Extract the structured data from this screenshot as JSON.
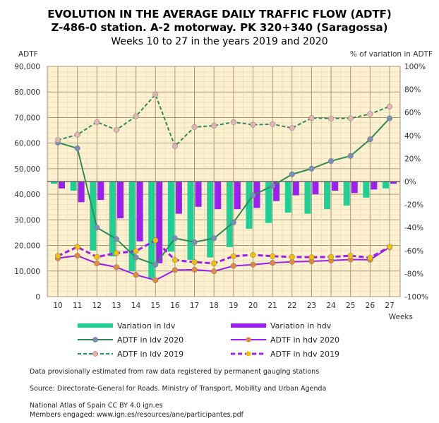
{
  "title": {
    "line1": "EVOLUTION IN THE AVERAGE DAILY TRAFFIC FLOW (ADTF)",
    "line2": "Z-486-0 station. A-2 motorway. PK 320+340 (Saragossa)",
    "line3": "Weeks 10 to 27 in the years 2019 and 2020"
  },
  "chart_data": {
    "type": "bar+line",
    "ylabel_left": "ADTF",
    "ylabel_right": "% of variation in ADTF",
    "xlabel": "Weeks",
    "ylim_left": [
      0,
      90000
    ],
    "ylim_right": [
      -100,
      100
    ],
    "yticks_left": [
      "0",
      "10,000",
      "20,000",
      "30,000",
      "40,000",
      "50,000",
      "60,000",
      "70,000",
      "80,000",
      "90,000"
    ],
    "yticks_right": [
      "-100%",
      "-80%",
      "-60%",
      "-40%",
      "-20%",
      "0%",
      "20%",
      "40%",
      "60%",
      "80%",
      "100%"
    ],
    "grid": true,
    "legend_position": "bottom",
    "categories": [
      "10",
      "11",
      "12",
      "13",
      "14",
      "15",
      "16",
      "17",
      "18",
      "19",
      "20",
      "21",
      "22",
      "23",
      "24",
      "25",
      "26",
      "27"
    ],
    "bar_series": [
      {
        "name": "Variation in ldv",
        "color": "#1fcf94",
        "axis": "right",
        "values": [
          -2,
          -8,
          -60,
          -65,
          -78,
          -84,
          -61,
          -68,
          -66,
          -57,
          -41,
          -36,
          -27,
          -28,
          -24,
          -21,
          -14,
          -6
        ]
      },
      {
        "name": "Variation in hdv",
        "color": "#9b1ff0",
        "axis": "right",
        "values": [
          -6,
          -18,
          -16,
          -32,
          -52,
          -71,
          -28,
          -22,
          -24,
          -24,
          -23,
          -17,
          -12,
          -11,
          -8,
          -10,
          -7,
          -2
        ]
      }
    ],
    "line_series": [
      {
        "name": "ADTF in ldv 2020",
        "color": "#2e8b57",
        "marker": "#7a8fb8",
        "dash": false,
        "axis": "left",
        "values": [
          60200,
          58000,
          27000,
          22500,
          15300,
          12500,
          22800,
          21300,
          22800,
          29000,
          39600,
          43300,
          47800,
          50000,
          53000,
          55000,
          61500,
          69700
        ]
      },
      {
        "name": "ADTF in hdv 2020",
        "color": "#9b1ff0",
        "marker": "#e08a3a",
        "dash": false,
        "axis": "left",
        "values": [
          15000,
          16000,
          13000,
          11500,
          8500,
          6400,
          10400,
          10500,
          9900,
          12000,
          12500,
          13200,
          13600,
          13800,
          14100,
          14500,
          14400,
          19300
        ]
      },
      {
        "name": "ADTF in ldv 2019",
        "color": "#2e8b57",
        "marker": "#e2b4b4",
        "dash": true,
        "axis": "left",
        "values": [
          61200,
          63300,
          68200,
          65200,
          70500,
          79000,
          58800,
          66300,
          66800,
          68200,
          67200,
          67400,
          65900,
          69800,
          69600,
          69700,
          71400,
          74300
        ]
      },
      {
        "name": "ADTF in hdv 2019",
        "color": "#9b1ff0",
        "marker": "#f2c200",
        "dash": true,
        "axis": "left",
        "values": [
          15900,
          19400,
          15500,
          17000,
          17800,
          22000,
          14300,
          13500,
          13000,
          15800,
          16300,
          15800,
          15500,
          15400,
          15500,
          16000,
          15200,
          19500
        ]
      }
    ]
  },
  "legend": {
    "ldv_var": "Variation in ldv",
    "hdv_var": "Variation in hdv",
    "ldv_2020": "ADTF in ldv 2020",
    "hdv_2020": "ADTF in hdv 2020",
    "ldv_2019": "ADTF in ldv 2019",
    "hdv_2019": "ADTF in hdv 2019"
  },
  "footer": {
    "note": "Data provisionally estimated from raw data registered by permanent gauging stations",
    "source": "Source: Directorate-General for Roads. Ministry of Transport, Mobility and Urban Agenda",
    "atlas": "National Atlas of Spain CC BY 4.0 ign.es",
    "members": "Members engaged: www.ign.es/resources/ane/participantes.pdf"
  }
}
